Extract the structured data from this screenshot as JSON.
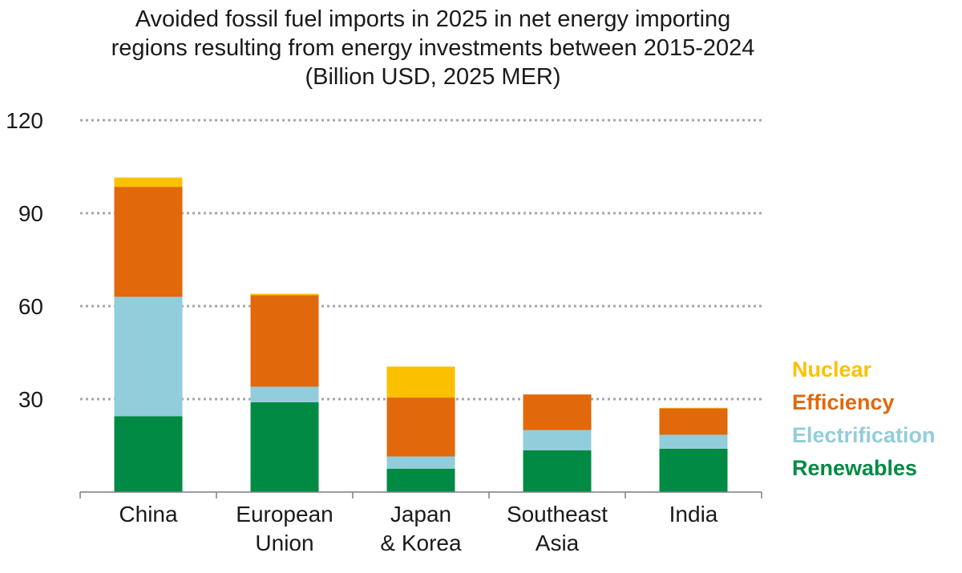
{
  "title_lines": [
    "Avoided fossil fuel imports in 2025 in net energy importing",
    "regions resulting from energy investments between 2015-2024",
    "(Billion USD, 2025 MER)"
  ],
  "chart_data": {
    "type": "bar",
    "stacked": true,
    "title": "Avoided fossil fuel imports in 2025 in net energy importing regions resulting from energy investments between 2015-2024 (Billion USD, 2025 MER)",
    "categories": [
      [
        "China"
      ],
      [
        "European",
        "Union"
      ],
      [
        "Japan",
        "& Korea"
      ],
      [
        "Southeast",
        "Asia"
      ],
      [
        "India"
      ]
    ],
    "series": [
      {
        "name": "Renewables",
        "color": "#008a44",
        "values": [
          24.5,
          29,
          7.5,
          13.5,
          14
        ]
      },
      {
        "name": "Electrification",
        "color": "#92cddb",
        "values": [
          38.5,
          5,
          4,
          6.5,
          4.5
        ]
      },
      {
        "name": "Efficiency",
        "color": "#e2680c",
        "values": [
          35.5,
          29.5,
          19,
          11.5,
          8.5
        ]
      },
      {
        "name": "Nuclear",
        "color": "#fbc100",
        "values": [
          3,
          0.5,
          10,
          0,
          0.2
        ]
      }
    ],
    "ylim": [
      0,
      120
    ],
    "yticks": [
      30,
      60,
      90,
      120
    ],
    "grid": true,
    "legend_position": "right",
    "legend_order": [
      "Nuclear",
      "Efficiency",
      "Electrification",
      "Renewables"
    ]
  }
}
